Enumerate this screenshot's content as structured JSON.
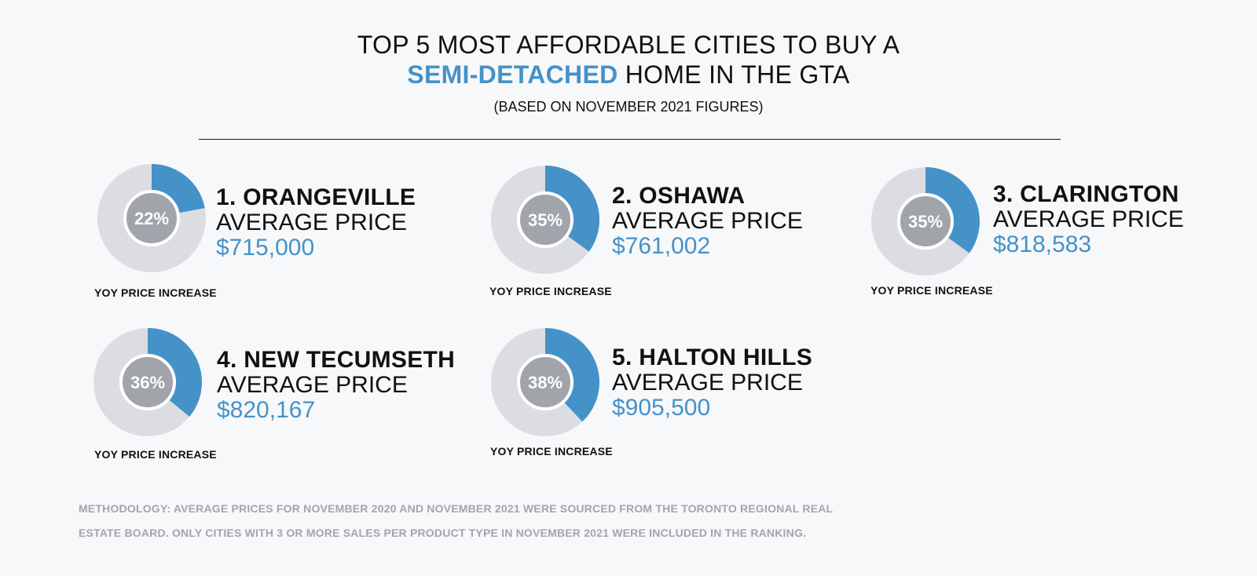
{
  "header": {
    "title_line1": "TOP 5 MOST AFFORDABLE CITIES TO BUY A",
    "title_accent": "SEMI-DETACHED",
    "title_line2_rest": " HOME IN THE GTA",
    "subtitle": "(BASED ON NOVEMBER 2021 FIGURES)"
  },
  "colors": {
    "accent": "#4592c8",
    "ring": "#dcdde2",
    "center": "#a1a4aa"
  },
  "chart_data": {
    "type": "donut",
    "metric": "YOY PRICE INCREASE",
    "items": [
      {
        "rank": "1. ORANGEVILLE",
        "label": "AVERAGE PRICE",
        "price": "$715,000",
        "pct": 22,
        "pct_label": "22%",
        "yoy_label": "YOY PRICE INCREASE"
      },
      {
        "rank": "2. OSHAWA",
        "label": "AVERAGE PRICE",
        "price": "$761,002",
        "pct": 35,
        "pct_label": "35%",
        "yoy_label": "YOY PRICE INCREASE"
      },
      {
        "rank": "3. CLARINGTON",
        "label": "AVERAGE PRICE",
        "price": "$818,583",
        "pct": 35,
        "pct_label": "35%",
        "yoy_label": "YOY PRICE INCREASE"
      },
      {
        "rank": "4. NEW TECUMSETH",
        "label": "AVERAGE PRICE",
        "price": "$820,167",
        "pct": 36,
        "pct_label": "36%",
        "yoy_label": "YOY PRICE INCREASE"
      },
      {
        "rank": "5. HALTON HILLS",
        "label": "AVERAGE PRICE",
        "price": "$905,500",
        "pct": 38,
        "pct_label": "38%",
        "yoy_label": "YOY PRICE INCREASE"
      }
    ]
  },
  "footer": {
    "methodology_line1": "METHODOLOGY: AVERAGE PRICES FOR NOVEMBER 2020 AND NOVEMBER 2021 WERE SOURCED FROM THE TORONTO REGIONAL REAL",
    "methodology_line2": "ESTATE BOARD. ONLY CITIES WITH 3 OR MORE SALES PER PRODUCT TYPE IN NOVEMBER 2021 WERE INCLUDED IN THE RANKING."
  }
}
